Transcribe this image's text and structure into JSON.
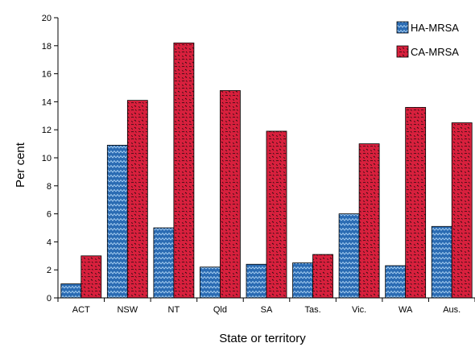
{
  "chart_data": {
    "type": "bar",
    "title": "",
    "xlabel": "State or territory",
    "ylabel": "Per cent",
    "ylim": [
      0,
      20
    ],
    "yticks": [
      0,
      2,
      4,
      6,
      8,
      10,
      12,
      14,
      16,
      18,
      20
    ],
    "categories": [
      "ACT",
      "NSW",
      "NT",
      "Qld",
      "SA",
      "Tas.",
      "Vic.",
      "WA",
      "Aus."
    ],
    "series": [
      {
        "name": "HA-MRSA",
        "color": "#1f5fa6",
        "pattern": "zigzag",
        "values": [
          1.0,
          10.9,
          5.0,
          2.2,
          2.4,
          2.5,
          6.0,
          2.3,
          5.1
        ]
      },
      {
        "name": "CA-MRSA",
        "color": "#d5203a",
        "pattern": "squiggle",
        "values": [
          3.0,
          14.1,
          18.2,
          14.8,
          11.9,
          3.1,
          11.0,
          13.6,
          12.5
        ]
      }
    ],
    "grid": false,
    "legend_position": "top-right"
  }
}
